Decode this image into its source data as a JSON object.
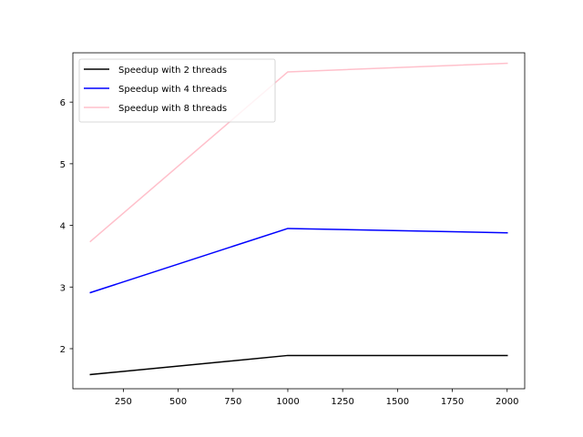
{
  "chart_data": {
    "type": "line",
    "title": "",
    "xlabel": "",
    "ylabel": "",
    "x": [
      100,
      1000,
      2000
    ],
    "xlim": [
      20,
      2080
    ],
    "ylim": [
      1.35,
      6.8
    ],
    "xticks": [
      250,
      500,
      750,
      1000,
      1250,
      1500,
      1750,
      2000
    ],
    "yticks": [
      2,
      3,
      4,
      5,
      6
    ],
    "grid": false,
    "legend_position": "top-left",
    "series": [
      {
        "name": "Speedup with 2 threads",
        "color": "#000000",
        "values": [
          1.58,
          1.89,
          1.89
        ]
      },
      {
        "name": "Speedup with 4 threads",
        "color": "#0000ff",
        "values": [
          2.91,
          3.95,
          3.88
        ]
      },
      {
        "name": "Speedup with 8 threads",
        "color": "#ffc0cb",
        "values": [
          3.74,
          6.49,
          6.63
        ]
      }
    ]
  }
}
